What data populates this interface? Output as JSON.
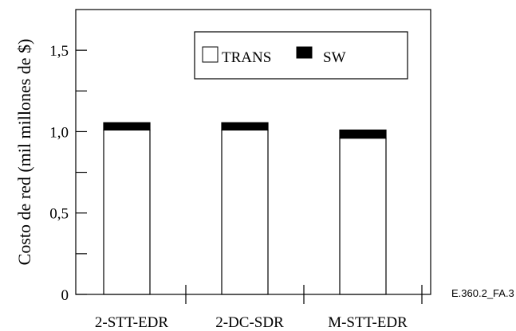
{
  "chart_data": {
    "type": "bar",
    "stacked": true,
    "categories": [
      "2-STT-EDR",
      "2-DC-SDR",
      "M-STT-EDR"
    ],
    "series": [
      {
        "name": "TRANS",
        "values": [
          1.01,
          1.01,
          0.96
        ],
        "color": "#ffffff"
      },
      {
        "name": "SW",
        "values": [
          0.045,
          0.045,
          0.05
        ],
        "color": "#000000"
      }
    ],
    "ylabel": "Costo de red (mil millones de $)",
    "xlabel": "",
    "ylim": [
      0,
      1.75
    ],
    "yticks": [
      {
        "value": 0,
        "label": "0"
      },
      {
        "value": 0.5,
        "label": "0,5"
      },
      {
        "value": 1.0,
        "label": "1,0"
      },
      {
        "value": 1.5,
        "label": "1,5"
      }
    ],
    "minor_yticks": [
      0.25,
      0.75,
      1.25
    ],
    "legend_position": "top-right",
    "grid": false,
    "figure_id": "E.360.2_FA.3"
  }
}
